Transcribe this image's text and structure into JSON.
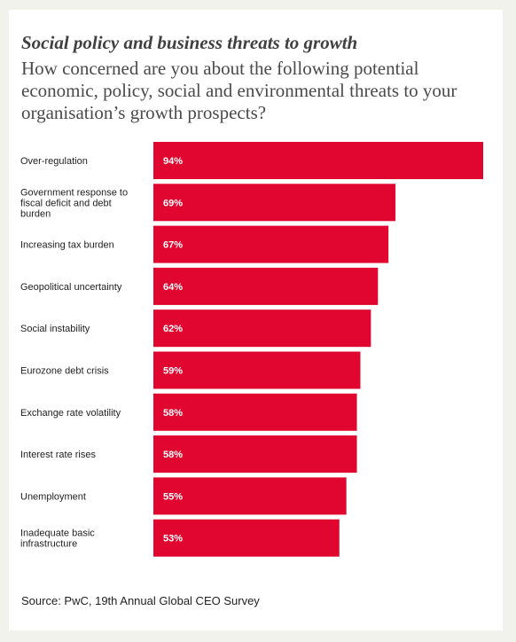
{
  "colors": {
    "bar": "#e0062f",
    "bar_label": "#ffffff",
    "category_text": "#222222",
    "card_background": "#ffffff",
    "page_background": "#f2f2ed"
  },
  "chart_data": {
    "type": "bar",
    "orientation": "horizontal",
    "title": "Social policy and business threats to growth",
    "subtitle": "How concerned are you about the following potential economic, policy, social and environmental threats to your organisation’s growth prospects?",
    "categories": [
      "Over-regulation",
      "Government response to fiscal deficit and debt burden",
      "Increasing tax burden",
      "Geopolitical uncertainty",
      "Social instability",
      "Eurozone debt crisis",
      "Exchange rate volatility",
      "Interest rate rises",
      "Unemployment",
      "Inadequate basic infrastructure"
    ],
    "values": [
      94,
      69,
      67,
      64,
      62,
      59,
      58,
      58,
      55,
      53
    ],
    "value_labels": [
      "94%",
      "69%",
      "67%",
      "64%",
      "62%",
      "59%",
      "58%",
      "58%",
      "55%",
      "53%"
    ],
    "xlim": [
      0,
      94
    ],
    "grid": false,
    "legend": "none"
  },
  "source": "Source: PwC, 19th Annual Global CEO Survey"
}
